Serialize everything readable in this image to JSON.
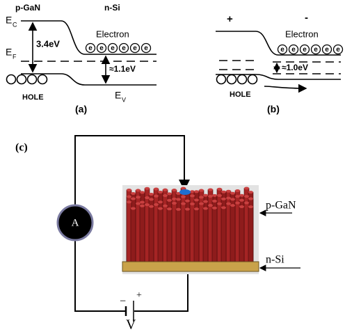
{
  "panel_a": {
    "label": "(a)",
    "p_side": "p-GaN",
    "n_side": "n-Si",
    "conduction_band": {
      "symbol": "E",
      "subscript": "C"
    },
    "fermi_level": {
      "symbol": "E",
      "subscript": "F"
    },
    "valence_band": {
      "symbol": "E",
      "subscript": "V"
    },
    "electron_label": "Electron",
    "electron_symbol": "e",
    "band_gap": "3.4eV",
    "barrier": "≈1.1eV",
    "hole_label": "HOLE"
  },
  "panel_b": {
    "label": "(b)",
    "positive": "+",
    "negative": "-",
    "electron_label": "Electron",
    "electron_symbol": "e",
    "barrier": "≈1.0eV",
    "hole_label": "HOLE"
  },
  "panel_c": {
    "label": "(c)",
    "ammeter": "A",
    "top_layer": "p-GaN",
    "substrate": "n-Si",
    "battery_negative": "−",
    "battery_positive": "+",
    "voltage": "V"
  }
}
